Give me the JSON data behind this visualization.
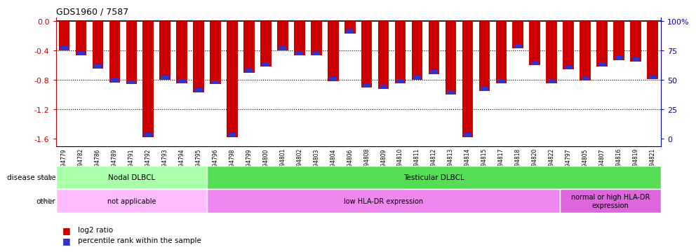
{
  "title": "GDS1960 / 7587",
  "samples": [
    "GSM94779",
    "GSM94782",
    "GSM94786",
    "GSM94789",
    "GSM94791",
    "GSM94792",
    "GSM94793",
    "GSM94794",
    "GSM94795",
    "GSM94796",
    "GSM94798",
    "GSM94799",
    "GSM94800",
    "GSM94801",
    "GSM94802",
    "GSM94803",
    "GSM94804",
    "GSM94806",
    "GSM94808",
    "GSM94809",
    "GSM94810",
    "GSM94811",
    "GSM94812",
    "GSM94813",
    "GSM94814",
    "GSM94815",
    "GSM94817",
    "GSM94818",
    "GSM94820",
    "GSM94822",
    "GSM94797",
    "GSM94805",
    "GSM94807",
    "GSM94816",
    "GSM94819",
    "GSM94821"
  ],
  "log2_ratio": [
    -0.4,
    -0.47,
    -0.65,
    -0.84,
    -0.86,
    -1.58,
    -0.8,
    -0.85,
    -0.97,
    -0.86,
    -1.58,
    -0.7,
    -0.62,
    -0.4,
    -0.47,
    -0.47,
    -0.82,
    -0.17,
    -0.9,
    -0.92,
    -0.85,
    -0.8,
    -0.72,
    -1.0,
    -1.58,
    -0.95,
    -0.85,
    -0.37,
    -0.6,
    -0.85,
    -0.66,
    -0.81,
    -0.62,
    -0.53,
    -0.55,
    -0.79
  ],
  "bar_color": "#cc0000",
  "percentile_color": "#3333cc",
  "ylim_min": -1.7,
  "ylim_max": 0.05,
  "yticks": [
    0.0,
    -0.4,
    -0.8,
    -1.2,
    -1.6
  ],
  "right_ytick_labels": [
    "100%",
    "75",
    "50",
    "25",
    "0"
  ],
  "right_ytick_values": [
    0.0,
    -0.4,
    -0.8,
    -1.2,
    -1.6
  ],
  "disease_state_groups": [
    {
      "label": "Nodal DLBCL",
      "start": 0,
      "end": 9,
      "color": "#aaffaa"
    },
    {
      "label": "Testicular DLBCL",
      "start": 9,
      "end": 36,
      "color": "#55dd55"
    }
  ],
  "other_groups": [
    {
      "label": "not applicable",
      "start": 0,
      "end": 9,
      "color": "#ffbbff"
    },
    {
      "label": "low HLA-DR expression",
      "start": 9,
      "end": 30,
      "color": "#ee88ee"
    },
    {
      "label": "normal or high HLA-DR\nexpression",
      "start": 30,
      "end": 36,
      "color": "#dd66dd"
    }
  ],
  "disease_state_label": "disease state",
  "other_label": "other",
  "legend_items": [
    {
      "label": "log2 ratio",
      "color": "#cc0000"
    },
    {
      "label": "percentile rank within the sample",
      "color": "#3333cc"
    }
  ],
  "background_color": "#ffffff",
  "axis_color_left": "#cc0000",
  "axis_color_right": "#0000bb"
}
